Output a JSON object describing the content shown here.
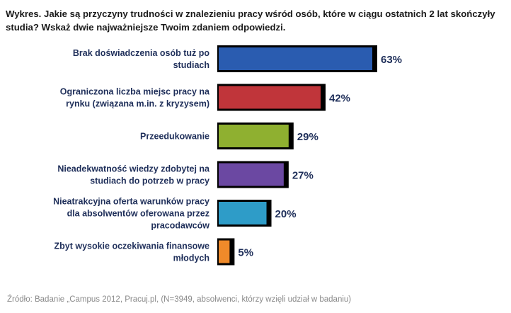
{
  "title": "Wykres. Jakie są przyczyny trudności w znalezieniu pracy wśród osób, które w ciągu ostatnich 2 lat skończyły studia? Wskaż dwie najważniejsze Twoim zdaniem odpowiedzi.",
  "source": "Źródło: Badanie „Campus 2012, Pracuj.pl, (N=3949, absolwenci, którzy wzięli udział w badaniu)",
  "chart_data": {
    "type": "bar",
    "orientation": "horizontal",
    "categories": [
      [
        "Brak doświadczenia osób tuż po",
        "studiach"
      ],
      [
        "Ograniczona liczba miejsc pracy na",
        "rynku (związana m.in. z kryzysem)"
      ],
      [
        "Przeedukowanie"
      ],
      [
        "Nieadekwatność wiedzy zdobytej na",
        "studiach do potrzeb w pracy"
      ],
      [
        "Nieatrakcyjna oferta warunków pracy",
        "dla absolwentów oferowana przez",
        "pracodawców"
      ],
      [
        "Zbyt wysokie oczekiwania finansowe",
        "młodych"
      ]
    ],
    "values": [
      63,
      42,
      29,
      27,
      20,
      5
    ],
    "value_labels": [
      "63%",
      "42%",
      "29%",
      "27%",
      "20%",
      "5%"
    ],
    "colors": [
      "#2a5cb0",
      "#c0353a",
      "#8fb030",
      "#6b48a2",
      "#2e9cc8",
      "#ef8a2a"
    ],
    "unit": "%",
    "xlim": [
      0,
      63
    ],
    "grid": false,
    "legend": "none"
  }
}
